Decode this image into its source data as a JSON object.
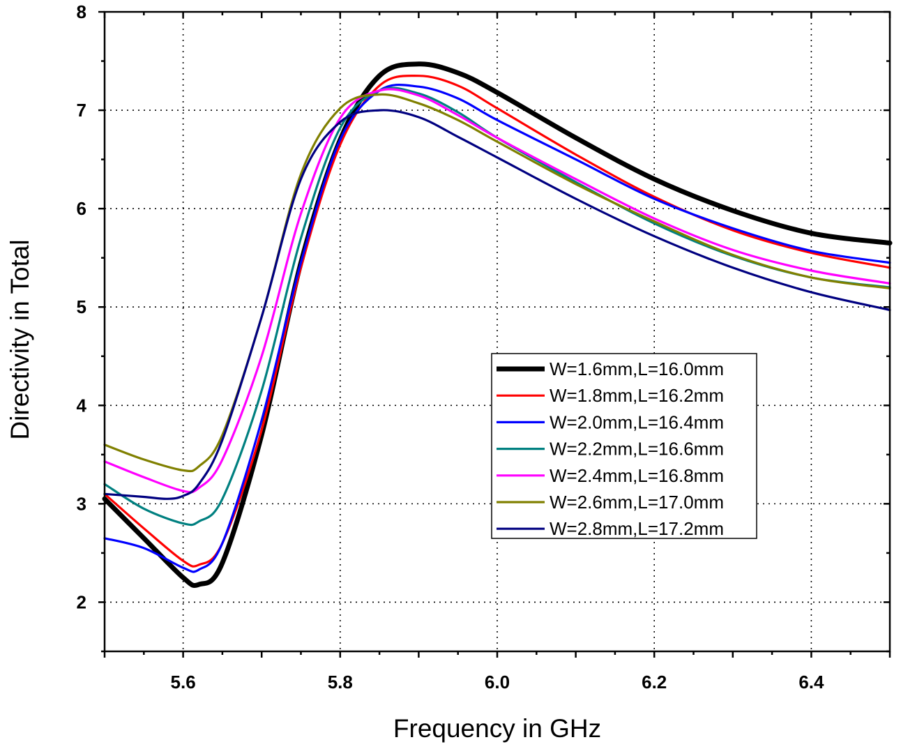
{
  "chart_data": {
    "type": "line",
    "title": "",
    "xlabel": "Frequency in GHz",
    "ylabel": "Directivity in Total",
    "xlim": [
      5.5,
      6.5
    ],
    "ylim": [
      1.5,
      8.0
    ],
    "x_ticks": [
      5.6,
      5.8,
      6.0,
      6.2,
      6.4
    ],
    "x_tick_labels": [
      "5.6",
      "5.8",
      "6.0",
      "6.2",
      "6.4"
    ],
    "y_ticks": [
      2,
      3,
      4,
      5,
      6,
      7,
      8
    ],
    "y_tick_labels": [
      "2",
      "3",
      "4",
      "5",
      "6",
      "7",
      "8"
    ],
    "grid": true,
    "legend_position": "center-right",
    "series": [
      {
        "name": "W=1.6mm,L=16.0mm",
        "color": "#000000",
        "line_weight": 3,
        "x": [
          5.5,
          5.55,
          5.6,
          5.62,
          5.65,
          5.7,
          5.75,
          5.8,
          5.85,
          5.9,
          5.95,
          6.0,
          6.1,
          6.2,
          6.3,
          6.4,
          6.5
        ],
        "y": [
          3.05,
          2.65,
          2.25,
          2.18,
          2.4,
          3.7,
          5.45,
          6.7,
          7.35,
          7.47,
          7.38,
          7.18,
          6.72,
          6.3,
          5.98,
          5.75,
          5.65
        ]
      },
      {
        "name": "W=1.8mm,L=16.2mm",
        "color": "#ff0000",
        "line_weight": 2,
        "x": [
          5.5,
          5.55,
          5.6,
          5.62,
          5.65,
          5.7,
          5.75,
          5.8,
          5.85,
          5.9,
          5.95,
          6.0,
          6.1,
          6.2,
          6.3,
          6.4,
          6.5
        ],
        "y": [
          3.1,
          2.75,
          2.42,
          2.38,
          2.6,
          3.75,
          5.4,
          6.65,
          7.25,
          7.35,
          7.25,
          7.02,
          6.55,
          6.12,
          5.78,
          5.55,
          5.4
        ]
      },
      {
        "name": "W=2.0mm,L=16.4mm",
        "color": "#0000ff",
        "line_weight": 2,
        "x": [
          5.5,
          5.55,
          5.6,
          5.62,
          5.65,
          5.7,
          5.75,
          5.8,
          5.85,
          5.9,
          5.95,
          6.0,
          6.1,
          6.2,
          6.3,
          6.4,
          6.5
        ],
        "y": [
          2.65,
          2.55,
          2.35,
          2.33,
          2.6,
          3.85,
          5.45,
          6.7,
          7.2,
          7.24,
          7.12,
          6.9,
          6.5,
          6.1,
          5.8,
          5.57,
          5.45
        ]
      },
      {
        "name": "W=2.2mm,L=16.6mm",
        "color": "#008080",
        "line_weight": 2,
        "x": [
          5.5,
          5.55,
          5.6,
          5.62,
          5.65,
          5.7,
          5.75,
          5.8,
          5.85,
          5.9,
          5.95,
          6.0,
          6.1,
          6.2,
          6.3,
          6.4,
          6.5
        ],
        "y": [
          3.2,
          2.95,
          2.8,
          2.82,
          3.05,
          4.15,
          5.7,
          6.82,
          7.2,
          7.17,
          6.98,
          6.72,
          6.27,
          5.85,
          5.52,
          5.3,
          5.2
        ]
      },
      {
        "name": "W=2.4mm,L=16.8mm",
        "color": "#ff00ff",
        "line_weight": 2,
        "x": [
          5.5,
          5.55,
          5.6,
          5.62,
          5.65,
          5.7,
          5.75,
          5.8,
          5.85,
          5.9,
          5.95,
          6.0,
          6.1,
          6.2,
          6.3,
          6.4,
          6.5
        ],
        "y": [
          3.43,
          3.27,
          3.13,
          3.16,
          3.45,
          4.5,
          5.95,
          6.92,
          7.2,
          7.15,
          6.95,
          6.72,
          6.3,
          5.9,
          5.58,
          5.37,
          5.24
        ]
      },
      {
        "name": "W=2.6mm,L=17.0mm",
        "color": "#808000",
        "line_weight": 2,
        "x": [
          5.5,
          5.55,
          5.6,
          5.62,
          5.65,
          5.7,
          5.75,
          5.8,
          5.85,
          5.9,
          5.95,
          6.0,
          6.1,
          6.2,
          6.3,
          6.4,
          6.5
        ],
        "y": [
          3.6,
          3.45,
          3.34,
          3.38,
          3.7,
          4.9,
          6.35,
          7.02,
          7.16,
          7.07,
          6.9,
          6.68,
          6.25,
          5.87,
          5.53,
          5.3,
          5.19
        ]
      },
      {
        "name": "W=2.8mm,L=17.2mm",
        "color": "#000080",
        "line_weight": 2,
        "x": [
          5.5,
          5.55,
          5.58,
          5.6,
          5.62,
          5.65,
          5.7,
          5.75,
          5.8,
          5.85,
          5.9,
          5.95,
          6.0,
          6.1,
          6.2,
          6.3,
          6.4,
          6.5
        ],
        "y": [
          3.1,
          3.07,
          3.05,
          3.08,
          3.2,
          3.65,
          4.9,
          6.3,
          6.88,
          7.0,
          6.93,
          6.73,
          6.52,
          6.1,
          5.72,
          5.4,
          5.15,
          4.97
        ]
      }
    ]
  }
}
